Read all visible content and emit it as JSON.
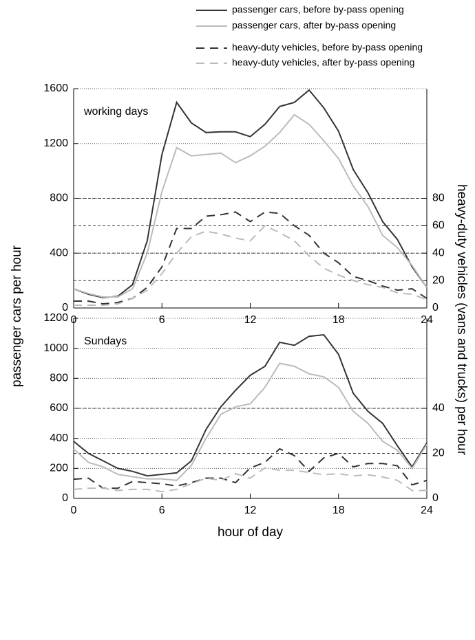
{
  "chart_data": [
    {
      "type": "line",
      "annotation": "working days",
      "ylabel": "passenger cars per hour",
      "y2label": "heavy-duty vehicles (vans and trucks) per hour",
      "x": [
        0,
        1,
        2,
        3,
        4,
        5,
        6,
        7,
        8,
        9,
        10,
        11,
        12,
        13,
        14,
        15,
        16,
        17,
        18,
        19,
        20,
        21,
        22,
        23,
        24
      ],
      "xlim": [
        0,
        24
      ],
      "xticks": [
        0,
        6,
        12,
        18,
        24
      ],
      "ylim": [
        0,
        1600
      ],
      "yticks": [
        0,
        400,
        800,
        1200,
        1600
      ],
      "y2lim": [
        0,
        160
      ],
      "y2ticks": [
        0,
        20,
        40,
        60,
        80
      ],
      "grid": true,
      "series": [
        {
          "name": "passenger cars, before by-pass opening",
          "color": "#333333",
          "style": "solid",
          "values": [
            140,
            100,
            75,
            85,
            170,
            490,
            1120,
            1500,
            1350,
            1280,
            1285,
            1285,
            1250,
            1340,
            1470,
            1500,
            1590,
            1460,
            1290,
            1010,
            840,
            630,
            500,
            300,
            150
          ]
        },
        {
          "name": "passenger cars, after by-pass opening",
          "color": "#bbbbbb",
          "style": "solid",
          "values": [
            140,
            105,
            80,
            80,
            140,
            400,
            850,
            1170,
            1110,
            1120,
            1130,
            1060,
            1110,
            1180,
            1280,
            1410,
            1340,
            1220,
            1090,
            890,
            740,
            530,
            440,
            310,
            150
          ]
        },
        {
          "name": "heavy-duty vehicles, before by-pass opening",
          "color": "#333333",
          "style": "dashed",
          "axis": "y2",
          "values": [
            5,
            5,
            3,
            4,
            7,
            15,
            30,
            58,
            58,
            67,
            68,
            70,
            63,
            70,
            69,
            60,
            53,
            40,
            33,
            23,
            20,
            16,
            13,
            14,
            7
          ]
        },
        {
          "name": "heavy-duty vehicles, after by-pass opening",
          "color": "#bbbbbb",
          "style": "dashed",
          "axis": "y2",
          "values": [
            2,
            2,
            2,
            3,
            7,
            13,
            25,
            40,
            52,
            56,
            54,
            51,
            49,
            60,
            55,
            49,
            38,
            29,
            24,
            20,
            17,
            15,
            11,
            10,
            6
          ]
        }
      ]
    },
    {
      "type": "line",
      "annotation": "Sundays",
      "xlabel": "hour of day",
      "x": [
        0,
        1,
        2,
        3,
        4,
        5,
        6,
        7,
        8,
        9,
        10,
        11,
        12,
        13,
        14,
        15,
        16,
        17,
        18,
        19,
        20,
        21,
        22,
        23,
        24
      ],
      "xlim": [
        0,
        24
      ],
      "xticks": [
        0,
        6,
        12,
        18,
        24
      ],
      "ylim": [
        0,
        1200
      ],
      "yticks": [
        0,
        200,
        400,
        600,
        800,
        1000,
        1200
      ],
      "y2lim": [
        0,
        80
      ],
      "y2ticks": [
        0,
        20,
        40
      ],
      "grid": true,
      "series": [
        {
          "color": "#333333",
          "style": "solid",
          "values": [
            380,
            300,
            250,
            200,
            180,
            150,
            160,
            170,
            250,
            460,
            610,
            720,
            820,
            880,
            1040,
            1020,
            1080,
            1090,
            960,
            700,
            580,
            500,
            350,
            210,
            370
          ]
        },
        {
          "color": "#bbbbbb",
          "style": "solid",
          "values": [
            330,
            240,
            210,
            160,
            145,
            130,
            130,
            120,
            220,
            400,
            560,
            610,
            630,
            740,
            900,
            880,
            830,
            810,
            740,
            580,
            500,
            380,
            320,
            200,
            360
          ]
        },
        {
          "color": "#333333",
          "style": "dashed",
          "axis": "y2",
          "values": [
            8.5,
            9,
            4.5,
            4.5,
            7.5,
            7,
            6.5,
            5.5,
            7,
            9,
            9,
            7,
            13.5,
            16,
            22,
            19,
            12,
            18,
            20,
            14,
            15.5,
            15.5,
            14.5,
            6,
            8
          ]
        },
        {
          "color": "#bbbbbb",
          "style": "dashed",
          "axis": "y2",
          "values": [
            4,
            4.5,
            4.5,
            3.5,
            4,
            4,
            3,
            4,
            6.5,
            9,
            8,
            11,
            9,
            13.5,
            12.5,
            12.5,
            11.5,
            10.5,
            11,
            10,
            10.5,
            9.5,
            8,
            3.5,
            3.5
          ]
        }
      ]
    }
  ]
}
